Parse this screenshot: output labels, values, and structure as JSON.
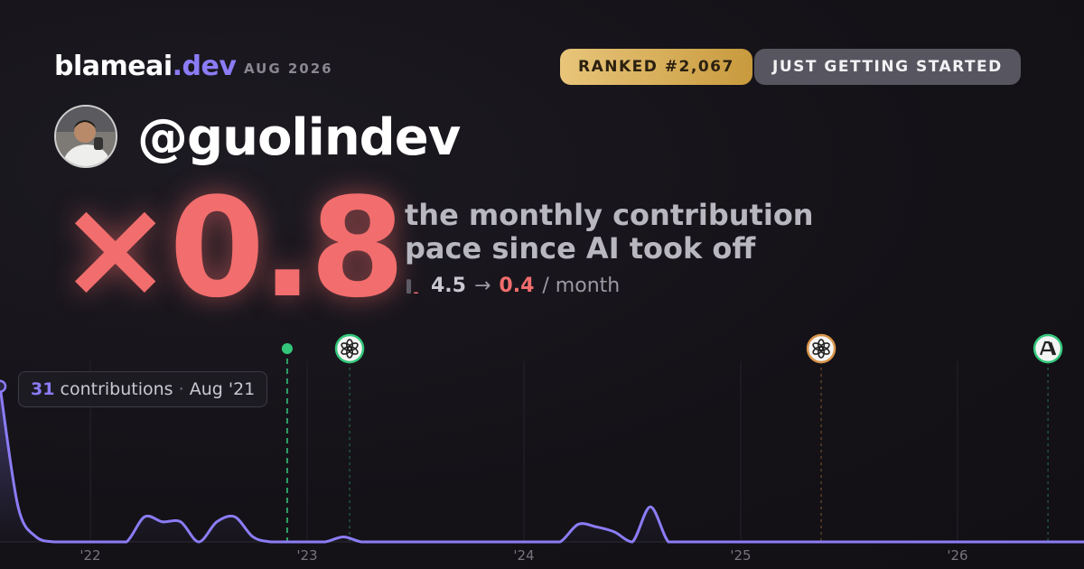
{
  "header": {
    "brand": "blameai",
    "brand_suffix": ".dev",
    "date": "AUG 2026",
    "rank": "RANKED #2,067",
    "status": "JUST GETTING STARTED",
    "handle": "@guolindev",
    "multiplier": "×0.8",
    "description": [
      "the monthly contribution",
      "pace since AI took off"
    ],
    "pace": {
      "before": 4.5,
      "arrow": "→",
      "after": 0.4,
      "unit": "/ month"
    }
  },
  "tooltip": {
    "unit": "contributions",
    "separator": "·",
    "date": "Aug '21"
  },
  "chart_data": {
    "type": "line",
    "x": [
      2021.5833,
      2021.6667,
      2021.75,
      2021.8333,
      2021.9167,
      2022,
      2022.0833,
      2022.1667,
      2022.25,
      2022.3333,
      2022.4167,
      2022.5,
      2022.5833,
      2022.6667,
      2022.75,
      2022.8333,
      2022.9167,
      2023,
      2023.0833,
      2023.1667,
      2023.25,
      2023.3333,
      2023.4167,
      2023.5,
      2023.5833,
      2023.6667,
      2023.75,
      2023.8333,
      2023.9167,
      2024,
      2024.0833,
      2024.1667,
      2024.25,
      2024.3333,
      2024.4167,
      2024.5,
      2024.5833,
      2024.6667,
      2024.75,
      2024.8333,
      2024.9167,
      2025,
      2025.0833,
      2025.1667,
      2025.25,
      2025.3333,
      2025.4167,
      2025.5,
      2025.5833,
      2025.6667,
      2025.75,
      2025.8333,
      2025.9167,
      2026,
      2026.0833,
      2026.1667,
      2026.25,
      2026.3333,
      2026.4167,
      2026.5,
      2026.5833
    ],
    "values": [
      31,
      7,
      1,
      0,
      0,
      0,
      0,
      0,
      5,
      4,
      4,
      0,
      4,
      5,
      1,
      0,
      0,
      0,
      0,
      1,
      0,
      0,
      0,
      0,
      0,
      0,
      0,
      0,
      0,
      0,
      0,
      0,
      3.5,
      3,
      2,
      0,
      7,
      0,
      0,
      0,
      0,
      0,
      0,
      0,
      0,
      0,
      0,
      0,
      0,
      0,
      0,
      0,
      0,
      0,
      0,
      0,
      0,
      0,
      0,
      0,
      0
    ],
    "color": "#8b7cf6",
    "xlim": [
      2021.5833,
      2026.5833
    ],
    "ylim": [
      0,
      36
    ],
    "xticks": [
      {
        "value": 2022,
        "label": "'22"
      },
      {
        "value": 2023,
        "label": "'23"
      },
      {
        "value": 2024,
        "label": "'24"
      },
      {
        "value": 2025,
        "label": "'25"
      },
      {
        "value": 2026,
        "label": "'26"
      }
    ],
    "grid": true,
    "events": [
      2022.908,
      2023.196,
      2025.371,
      2026.417
    ]
  }
}
